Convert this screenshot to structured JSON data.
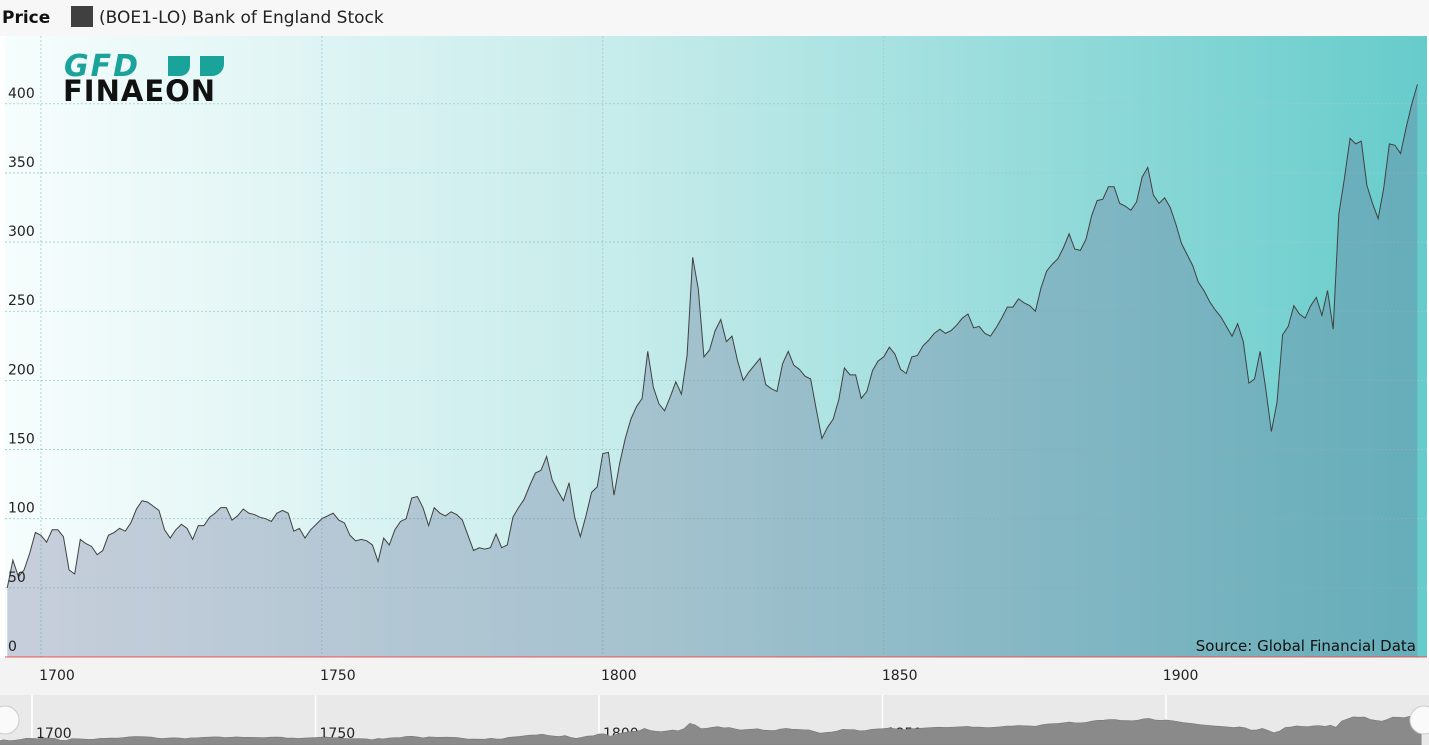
{
  "logo": [
    "GFD",
    "FINAEON"
  ],
  "chart_data": {
    "type": "area",
    "title": "Price",
    "annotation": "Source: Global Financial Data",
    "series": [
      {
        "name": "(BOE1-LO) Bank of England Stock",
        "color": "#404040",
        "values": [
          50,
          70,
          58,
          63,
          75,
          90,
          88,
          83,
          92,
          92,
          87,
          63,
          60,
          85,
          82,
          80,
          74,
          77,
          88,
          90,
          93,
          91,
          97,
          107,
          113,
          112,
          109,
          106,
          92,
          86,
          92,
          96,
          93,
          85,
          95,
          95,
          101,
          104,
          108,
          108,
          99,
          102,
          107,
          104,
          103,
          101,
          100,
          98,
          104,
          106,
          104,
          91,
          93,
          86,
          92,
          96,
          100,
          102,
          104,
          99,
          97,
          88,
          84,
          85,
          84,
          81,
          69,
          86,
          81,
          92,
          98,
          100,
          115,
          116,
          108,
          95,
          108,
          104,
          102,
          105,
          103,
          99,
          88,
          77,
          79,
          78,
          79,
          89,
          79,
          81,
          101,
          108,
          114,
          124,
          133,
          135,
          145,
          128,
          120,
          113,
          126,
          101,
          87,
          102,
          119,
          123,
          147,
          148,
          117,
          140,
          158,
          172,
          181,
          187,
          221,
          195,
          183,
          178,
          188,
          199,
          190,
          218,
          289,
          266,
          217,
          222,
          236,
          244,
          228,
          232,
          214,
          200,
          206,
          211,
          216,
          197,
          194,
          192,
          212,
          221,
          211,
          208,
          203,
          201,
          179,
          158,
          166,
          172,
          186,
          209,
          204,
          204,
          187,
          192,
          207,
          214,
          217,
          224,
          219,
          208,
          205,
          217,
          218,
          225,
          229,
          234,
          237,
          234,
          236,
          240,
          245,
          248,
          238,
          239,
          234,
          232,
          238,
          245,
          253,
          253,
          259,
          256,
          254,
          250,
          267,
          279,
          284,
          288,
          296,
          306,
          295,
          294,
          302,
          319,
          330,
          331,
          340,
          340,
          328,
          326,
          323,
          329,
          347,
          354,
          334,
          328,
          332,
          325,
          313,
          299,
          291,
          283,
          271,
          265,
          257,
          251,
          246,
          239,
          232,
          241,
          228,
          198,
          201,
          221,
          194,
          163,
          184,
          233,
          239,
          254,
          248,
          245,
          254,
          260,
          247,
          265,
          237,
          320,
          346,
          375,
          371,
          373,
          341,
          328,
          317,
          339,
          371,
          370,
          364,
          383,
          400,
          414
        ]
      }
    ],
    "x": [
      1694,
      1695,
      1696,
      1697,
      1698,
      1699,
      1700,
      1701,
      1702,
      1703,
      1704,
      1705,
      1706,
      1707,
      1708,
      1709,
      1710,
      1711,
      1712,
      1713,
      1714,
      1715,
      1716,
      1717,
      1718,
      1719,
      1720,
      1721,
      1722,
      1723,
      1724,
      1725,
      1726,
      1727,
      1728,
      1729,
      1730,
      1731,
      1732,
      1733,
      1734,
      1735,
      1736,
      1737,
      1738,
      1739,
      1740,
      1741,
      1742,
      1743,
      1744,
      1745,
      1746,
      1747,
      1748,
      1749,
      1750,
      1751,
      1752,
      1753,
      1754,
      1755,
      1756,
      1757,
      1758,
      1759,
      1760,
      1761,
      1762,
      1763,
      1764,
      1765,
      1766,
      1767,
      1768,
      1769,
      1770,
      1771,
      1772,
      1773,
      1774,
      1775,
      1776,
      1777,
      1778,
      1779,
      1780,
      1781,
      1782,
      1783,
      1784,
      1785,
      1786,
      1787,
      1788,
      1789,
      1790,
      1791,
      1792,
      1793,
      1794,
      1795,
      1796,
      1797,
      1798,
      1799,
      1800,
      1801,
      1802,
      1803,
      1804,
      1805,
      1806,
      1807,
      1808,
      1809,
      1810,
      1811,
      1812,
      1813,
      1814,
      1815,
      1816,
      1817,
      1818,
      1819,
      1820,
      1821,
      1822,
      1823,
      1824,
      1825,
      1826,
      1827,
      1828,
      1829,
      1830,
      1831,
      1832,
      1833,
      1834,
      1835,
      1836,
      1837,
      1838,
      1839,
      1840,
      1841,
      1842,
      1843,
      1844,
      1845,
      1846,
      1847,
      1848,
      1849,
      1850,
      1851,
      1852,
      1853,
      1854,
      1855,
      1856,
      1857,
      1858,
      1859,
      1860,
      1861,
      1862,
      1863,
      1864,
      1865,
      1866,
      1867,
      1868,
      1869,
      1870,
      1871,
      1872,
      1873,
      1874,
      1875,
      1876,
      1877,
      1878,
      1879,
      1880,
      1881,
      1882,
      1883,
      1884,
      1885,
      1886,
      1887,
      1888,
      1889,
      1890,
      1891,
      1892,
      1893,
      1894,
      1895,
      1896,
      1897,
      1898,
      1899,
      1900,
      1901,
      1902,
      1903,
      1904,
      1905,
      1906,
      1907,
      1908,
      1909,
      1910,
      1911,
      1912,
      1913,
      1914,
      1915,
      1916,
      1917,
      1918,
      1919,
      1920,
      1921,
      1922,
      1923,
      1924,
      1925,
      1926,
      1927,
      1928,
      1929,
      1930,
      1931,
      1932,
      1933,
      1934,
      1935,
      1936,
      1937,
      1938,
      1939,
      1940,
      1941,
      1942,
      1943,
      1944,
      1945
    ],
    "xlim": [
      1693.6,
      1946.7
    ],
    "xticks": [
      1700,
      1750,
      1800,
      1850,
      1900
    ],
    "ylim": [
      0,
      449
    ],
    "yticks": [
      0,
      50,
      100,
      150,
      200,
      250,
      300,
      350,
      400
    ],
    "grid": true
  }
}
